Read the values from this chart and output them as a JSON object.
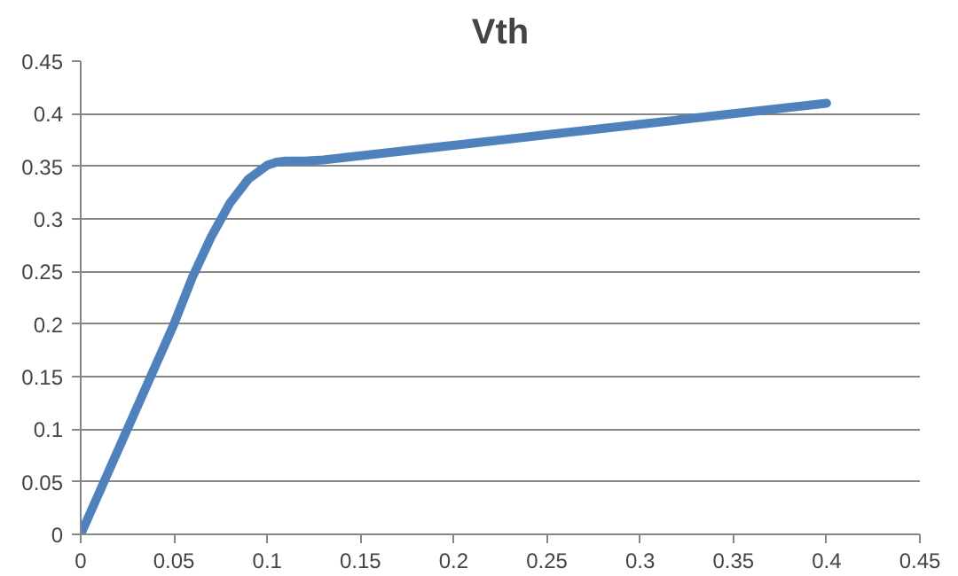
{
  "chart_data": {
    "type": "line",
    "title": "Vth",
    "x": [
      0,
      0.02,
      0.05,
      0.06,
      0.07,
      0.08,
      0.09,
      0.1,
      0.105,
      0.11,
      0.12,
      0.13,
      0.15,
      0.2,
      0.25,
      0.3,
      0.35,
      0.4
    ],
    "series": [
      {
        "color": "#4f81bd",
        "values": [
          0,
          0.08,
          0.2,
          0.245,
          0.283,
          0.315,
          0.338,
          0.351,
          0.354,
          0.355,
          0.355,
          0.356,
          0.36,
          0.37,
          0.38,
          0.39,
          0.4,
          0.41
        ]
      }
    ],
    "xlim": [
      0,
      0.45
    ],
    "xticks": [
      0,
      0.05,
      0.1,
      0.15,
      0.2,
      0.25,
      0.3,
      0.35,
      0.4,
      0.45
    ],
    "ylim": [
      0,
      0.45
    ],
    "yticks": [
      0,
      0.05,
      0.1,
      0.15,
      0.2,
      0.25,
      0.3,
      0.35,
      0.4,
      0.45
    ],
    "grid": "y",
    "marker": "none",
    "line_style": "solid"
  }
}
